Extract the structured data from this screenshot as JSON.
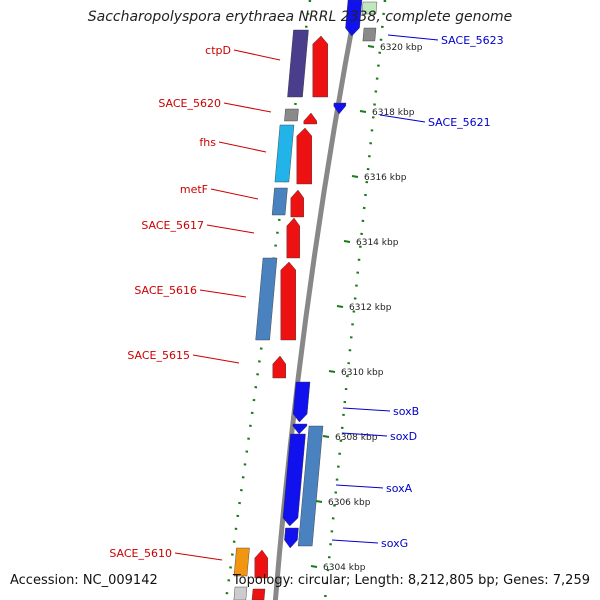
{
  "title": "Saccharopolyspora erythraea NRRL 2338, complete genome",
  "accession": "Accession: NC_009142",
  "topology": "Topology: circular; Length: 8,212,805 bp; Genes: 7,259",
  "colors": {
    "forward_red": "#ee1111",
    "reverse_blue": "#1111ee",
    "steel_blue": "#4a82c0",
    "purple": "#4a3d8c",
    "cyan": "#22b4e8",
    "orange": "#f29612",
    "gray": "#8a8a8a",
    "backbone": "#888888",
    "tick_green": "#1b7a1b",
    "label_red": "#cc0000",
    "label_blue": "#0000cc"
  },
  "ticks": [
    {
      "label": "6320 kbp"
    },
    {
      "label": "6318 kbp"
    },
    {
      "label": "6316 kbp"
    },
    {
      "label": "6314 kbp"
    },
    {
      "label": "6312 kbp"
    },
    {
      "label": "6310 kbp"
    },
    {
      "label": "6308 kbp"
    },
    {
      "label": "6306 kbp"
    },
    {
      "label": "6304 kbp"
    }
  ],
  "left_labels": [
    {
      "text": "ctpD"
    },
    {
      "text": "SACE_5620"
    },
    {
      "text": "fhs"
    },
    {
      "text": "metF"
    },
    {
      "text": "SACE_5617"
    },
    {
      "text": "SACE_5616"
    },
    {
      "text": "SACE_5615"
    },
    {
      "text": "SACE_5610"
    }
  ],
  "right_labels": [
    {
      "text": "SACE_5623"
    },
    {
      "text": "SACE_5621"
    },
    {
      "text": "soxB"
    },
    {
      "text": "soxD"
    },
    {
      "text": "soxA"
    },
    {
      "text": "soxG"
    }
  ]
}
